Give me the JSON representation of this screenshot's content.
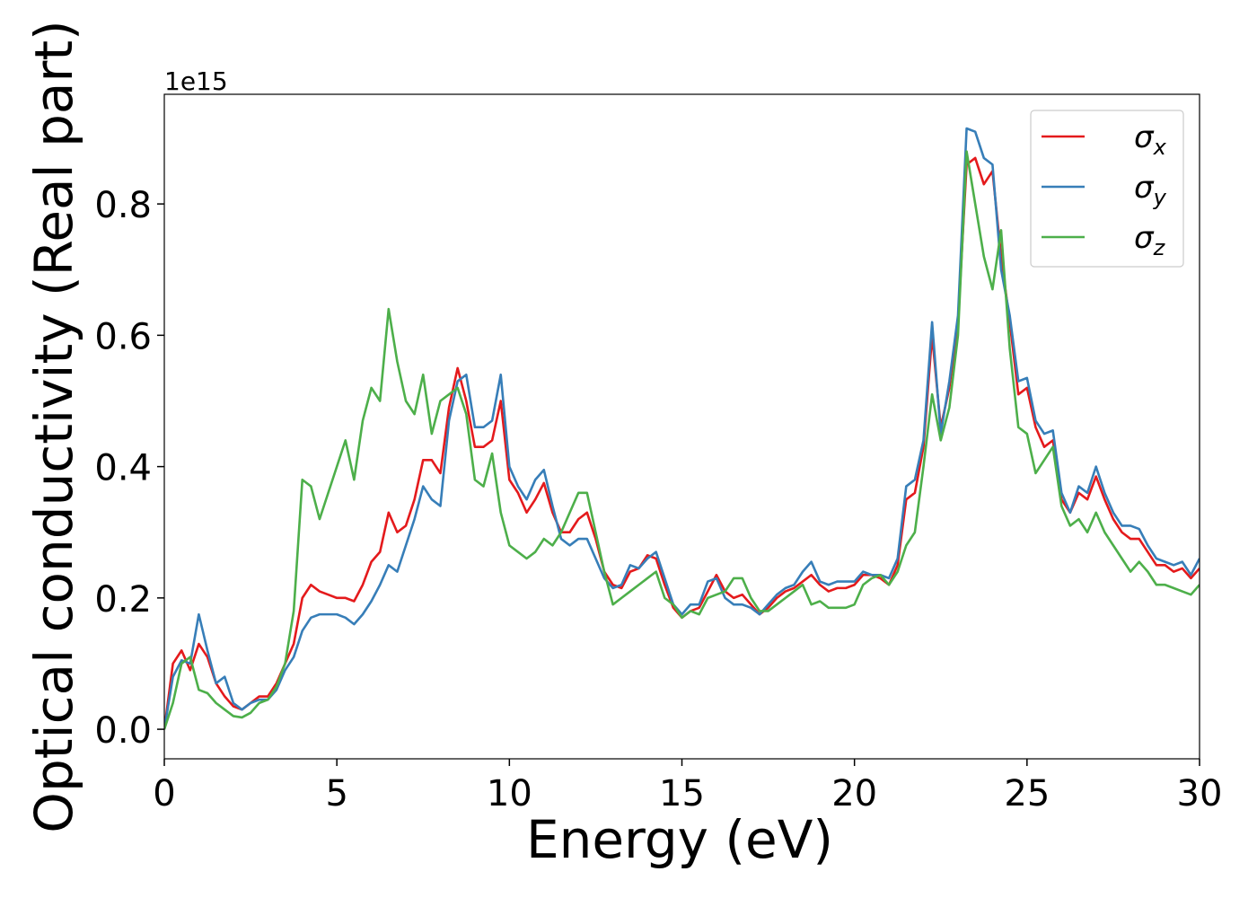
{
  "chart_data": {
    "type": "line",
    "xlabel": "Energy (eV)",
    "ylabel": "Optical conductivity (Real part)",
    "y_offset_text": "1e15",
    "xlim": [
      0,
      30
    ],
    "ylim": [
      -0.045,
      0.967
    ],
    "xticks": [
      0,
      5,
      10,
      15,
      20,
      25,
      30
    ],
    "yticks": [
      {
        "value": 0,
        "label": "0.0"
      },
      0.2,
      0.4,
      0.6,
      0.8
    ],
    "legend": "upper right",
    "grid": false,
    "x": [
      0,
      0.25,
      0.5,
      0.75,
      1,
      1.25,
      1.5,
      1.75,
      2,
      2.25,
      2.5,
      2.75,
      3,
      3.25,
      3.5,
      3.75,
      4,
      4.25,
      4.5,
      4.75,
      5,
      5.25,
      5.5,
      5.75,
      6,
      6.25,
      6.5,
      6.75,
      7,
      7.25,
      7.5,
      7.75,
      8,
      8.25,
      8.5,
      8.75,
      9,
      9.25,
      9.5,
      9.75,
      10,
      10.25,
      10.5,
      10.75,
      11,
      11.25,
      11.5,
      11.75,
      12,
      12.25,
      12.5,
      12.75,
      13,
      13.25,
      13.5,
      13.75,
      14,
      14.25,
      14.5,
      14.75,
      15,
      15.25,
      15.5,
      15.75,
      16,
      16.25,
      16.5,
      16.75,
      17,
      17.25,
      17.5,
      17.75,
      18,
      18.25,
      18.5,
      18.75,
      19,
      19.25,
      19.5,
      19.75,
      20,
      20.25,
      20.5,
      20.75,
      21,
      21.25,
      21.5,
      21.75,
      22,
      22.25,
      22.5,
      22.75,
      23,
      23.25,
      23.5,
      23.75,
      24,
      24.25,
      24.5,
      24.75,
      25,
      25.25,
      25.5,
      25.75,
      26,
      26.25,
      26.5,
      26.75,
      27,
      27.25,
      27.5,
      27.75,
      28,
      28.25,
      28.5,
      28.75,
      29,
      29.25,
      29.5,
      29.75,
      30
    ],
    "series": [
      {
        "name": "σx",
        "color": "#e41a1c",
        "values": [
          0,
          0.1,
          0.12,
          0.09,
          0.13,
          0.11,
          0.07,
          0.05,
          0.035,
          0.03,
          0.04,
          0.05,
          0.05,
          0.07,
          0.1,
          0.13,
          0.2,
          0.22,
          0.21,
          0.205,
          0.2,
          0.2,
          0.195,
          0.22,
          0.255,
          0.27,
          0.33,
          0.3,
          0.31,
          0.35,
          0.41,
          0.41,
          0.39,
          0.49,
          0.55,
          0.5,
          0.43,
          0.43,
          0.44,
          0.5,
          0.38,
          0.36,
          0.33,
          0.35,
          0.375,
          0.33,
          0.3,
          0.3,
          0.32,
          0.33,
          0.29,
          0.24,
          0.22,
          0.215,
          0.24,
          0.245,
          0.265,
          0.26,
          0.22,
          0.185,
          0.17,
          0.18,
          0.185,
          0.21,
          0.235,
          0.21,
          0.2,
          0.205,
          0.19,
          0.175,
          0.185,
          0.2,
          0.21,
          0.215,
          0.225,
          0.235,
          0.22,
          0.21,
          0.215,
          0.215,
          0.22,
          0.235,
          0.235,
          0.23,
          0.22,
          0.25,
          0.35,
          0.36,
          0.43,
          0.6,
          0.46,
          0.52,
          0.62,
          0.86,
          0.87,
          0.83,
          0.85,
          0.72,
          0.62,
          0.51,
          0.52,
          0.46,
          0.43,
          0.44,
          0.35,
          0.33,
          0.36,
          0.35,
          0.385,
          0.35,
          0.32,
          0.3,
          0.29,
          0.29,
          0.27,
          0.25,
          0.25,
          0.24,
          0.245,
          0.23,
          0.245
        ]
      },
      {
        "name": "σy",
        "color": "#377eb8",
        "values": [
          0,
          0.08,
          0.105,
          0.1,
          0.175,
          0.12,
          0.07,
          0.08,
          0.04,
          0.03,
          0.04,
          0.045,
          0.045,
          0.06,
          0.09,
          0.11,
          0.15,
          0.17,
          0.175,
          0.175,
          0.175,
          0.17,
          0.16,
          0.175,
          0.195,
          0.22,
          0.25,
          0.24,
          0.28,
          0.32,
          0.37,
          0.35,
          0.34,
          0.47,
          0.53,
          0.54,
          0.46,
          0.46,
          0.47,
          0.54,
          0.4,
          0.37,
          0.35,
          0.38,
          0.395,
          0.34,
          0.29,
          0.28,
          0.29,
          0.29,
          0.26,
          0.23,
          0.215,
          0.22,
          0.25,
          0.245,
          0.26,
          0.27,
          0.23,
          0.19,
          0.175,
          0.19,
          0.19,
          0.225,
          0.23,
          0.2,
          0.19,
          0.19,
          0.185,
          0.175,
          0.19,
          0.205,
          0.215,
          0.22,
          0.24,
          0.255,
          0.225,
          0.22,
          0.225,
          0.225,
          0.225,
          0.24,
          0.235,
          0.235,
          0.23,
          0.26,
          0.37,
          0.38,
          0.44,
          0.62,
          0.45,
          0.53,
          0.63,
          0.915,
          0.91,
          0.87,
          0.86,
          0.7,
          0.63,
          0.53,
          0.535,
          0.47,
          0.45,
          0.455,
          0.36,
          0.33,
          0.37,
          0.36,
          0.4,
          0.36,
          0.33,
          0.31,
          0.31,
          0.305,
          0.28,
          0.26,
          0.255,
          0.25,
          0.255,
          0.235,
          0.26
        ]
      },
      {
        "name": "σz",
        "color": "#4daf4a",
        "values": [
          0,
          0.04,
          0.1,
          0.11,
          0.06,
          0.055,
          0.04,
          0.03,
          0.02,
          0.018,
          0.025,
          0.04,
          0.045,
          0.065,
          0.1,
          0.18,
          0.38,
          0.37,
          0.32,
          0.36,
          0.4,
          0.44,
          0.38,
          0.47,
          0.52,
          0.5,
          0.64,
          0.56,
          0.5,
          0.48,
          0.54,
          0.45,
          0.5,
          0.51,
          0.52,
          0.48,
          0.38,
          0.37,
          0.42,
          0.33,
          0.28,
          0.27,
          0.26,
          0.27,
          0.29,
          0.28,
          0.3,
          0.33,
          0.36,
          0.36,
          0.3,
          0.24,
          0.19,
          0.2,
          0.21,
          0.22,
          0.23,
          0.24,
          0.2,
          0.19,
          0.17,
          0.18,
          0.175,
          0.2,
          0.205,
          0.21,
          0.23,
          0.23,
          0.2,
          0.18,
          0.18,
          0.19,
          0.2,
          0.21,
          0.22,
          0.19,
          0.195,
          0.185,
          0.185,
          0.185,
          0.19,
          0.22,
          0.23,
          0.235,
          0.22,
          0.24,
          0.28,
          0.3,
          0.4,
          0.51,
          0.44,
          0.49,
          0.6,
          0.88,
          0.8,
          0.72,
          0.67,
          0.76,
          0.58,
          0.46,
          0.45,
          0.39,
          0.41,
          0.43,
          0.34,
          0.31,
          0.32,
          0.3,
          0.33,
          0.3,
          0.28,
          0.26,
          0.24,
          0.255,
          0.24,
          0.22,
          0.22,
          0.215,
          0.21,
          0.205,
          0.22
        ]
      }
    ]
  }
}
